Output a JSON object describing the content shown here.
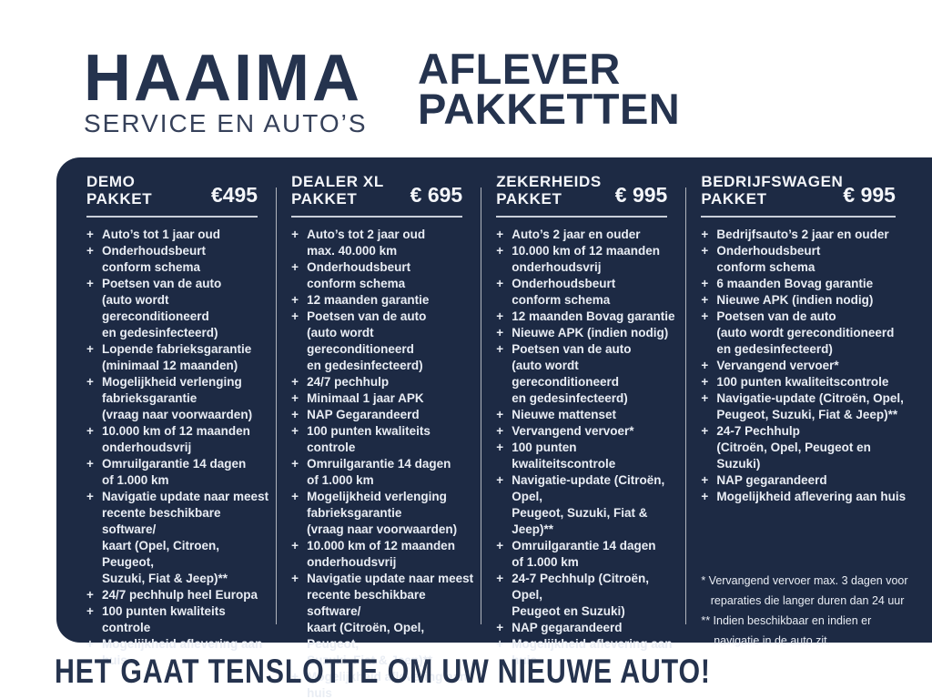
{
  "brand": {
    "name": "HAAIMA",
    "tagline": "SERVICE EN AUTO’S"
  },
  "title": {
    "line1": "AFLEVER",
    "line2": "PAKKETTEN"
  },
  "colors": {
    "navy_text": "#25334e",
    "panel_background": "#1d2a44",
    "panel_text": "#e9edf4",
    "divider": "#c9cfda"
  },
  "icons": {
    "plus": "+"
  },
  "packages": [
    {
      "title": "DEMO\nPAKKET",
      "price": "€495",
      "items": [
        "Auto’s tot 1 jaar oud",
        "Onderhoudsbeurt\nconform schema",
        "Poetsen van de auto\n(auto wordt gereconditioneerd\nen gedesinfecteerd)",
        "Lopende fabrieksgarantie\n(minimaal 12 maanden)",
        "Mogelijkheid verlenging\nfabrieksgarantie\n(vraag naar voorwaarden)",
        "10.000 km of 12 maanden\nonderhoudsvrij",
        "Omruilgarantie 14 dagen\nof 1.000 km",
        "Navigatie update naar meest\nrecente beschikbare software/\nkaart (Opel, Citroen,  Peugeot,\nSuzuki, Fiat & Jeep)**",
        "24/7 pechhulp heel Europa",
        "100 punten kwaliteits controle",
        "Mogelijkheid aflevering aan huis"
      ]
    },
    {
      "title": "DEALER XL\nPAKKET",
      "price": "€ 695",
      "items": [
        "Auto’s tot 2 jaar oud\nmax. 40.000 km",
        "Onderhoudsbeurt\nconform schema",
        "12 maanden garantie",
        "Poetsen van de auto\n(auto wordt gereconditioneerd\nen gedesinfecteerd)",
        "24/7 pechhulp",
        "Minimaal 1 jaar APK",
        "NAP Gegarandeerd",
        "100 punten kwaliteits controle",
        "Omruilgarantie 14 dagen\nof 1.000 km",
        "Mogelijkheid verlenging\nfabrieksgarantie\n(vraag naar voorwaarden)",
        "10.000 km of 12 maanden\nonderhoudsvrij",
        "Navigatie update naar meest\nrecente beschikbare software/\nkaart (Citroën, Opel, Peugeot,\nSuzuki, Fiat & Jeep)**",
        "Mogelijkheid aflevering aan huis"
      ]
    },
    {
      "title": "ZEKERHEIDS\nPAKKET",
      "price": "€ 995",
      "items": [
        "Auto’s 2 jaar en ouder",
        "10.000 km of 12 maanden\nonderhoudsvrij",
        "Onderhoudsbeurt\nconform schema",
        "12 maanden Bovag garantie",
        "Nieuwe APK (indien nodig)",
        "Poetsen van de auto\n(auto wordt gereconditioneerd\nen gedesinfecteerd)",
        "Nieuwe mattenset",
        "Vervangend vervoer*",
        "100 punten kwaliteitscontrole",
        "Navigatie-update (Citroën, Opel,\nPeugeot, Suzuki, Fiat & Jeep)**",
        "Omruilgarantie 14 dagen\nof 1.000 km",
        "24-7 Pechhulp (Citroën, Opel,\nPeugeot en Suzuki)",
        "NAP gegarandeerd",
        "Mogelijkheid aflevering aan huis"
      ]
    },
    {
      "title": "BEDRIJFSWAGEN\nPAKKET",
      "price": "€ 995",
      "items": [
        "Bedrijfsauto’s 2 jaar en ouder",
        "Onderhoudsbeurt\nconform schema",
        "6 maanden Bovag garantie",
        "Nieuwe APK (indien nodig)",
        "Poetsen van de auto\n(auto wordt gereconditioneerd\nen gedesinfecteerd)",
        "Vervangend vervoer*",
        "100 punten kwaliteitscontrole",
        "Navigatie-update (Citroën, Opel,\nPeugeot, Suzuki, Fiat & Jeep)**",
        "24-7 Pechhulp\n(Citroën, Opel, Peugeot en Suzuki)",
        "NAP gegarandeerd",
        "Mogelijkheid aflevering aan huis"
      ],
      "footnotes": [
        "* Vervangend vervoer max. 3 dagen voor\n   reparaties die langer duren dan 24 uur",
        "** Indien beschikbaar en indien er\n    navigatie in de auto zit."
      ]
    }
  ],
  "footer": {
    "headline": "HET GAAT TENSLOTTE OM UW NIEUWE AUTO!"
  }
}
